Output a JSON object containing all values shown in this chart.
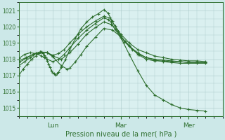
{
  "xlabel": "Pression niveau de la mer( hPa )",
  "bg_color": "#cce8e8",
  "plot_bg_color": "#daf0f0",
  "grid_color": "#aacaca",
  "line_color": "#2d6e2d",
  "ylim": [
    1014.5,
    1021.5
  ],
  "yticks": [
    1015,
    1016,
    1017,
    1018,
    1019,
    1020,
    1021
  ],
  "day_labels": [
    "Lun",
    "Mar",
    "Mer"
  ],
  "day_positions": [
    24,
    72,
    120
  ],
  "xlim": [
    0,
    144
  ],
  "series": [
    [
      0,
      1017.0,
      3,
      1017.4,
      6,
      1017.7,
      9,
      1018.0,
      12,
      1018.2,
      14,
      1018.35,
      16,
      1018.4,
      17,
      1018.35,
      18,
      1018.25,
      19,
      1018.1,
      20,
      1017.9,
      21,
      1017.7,
      22,
      1017.5,
      23,
      1017.3,
      24,
      1017.15,
      25,
      1017.1,
      26,
      1017.05,
      27,
      1017.1,
      28,
      1017.2,
      30,
      1017.5,
      33,
      1018.0,
      36,
      1018.6,
      40,
      1019.3,
      44,
      1019.9,
      48,
      1020.3,
      52,
      1020.6,
      56,
      1020.8,
      60,
      1021.05,
      63,
      1020.85,
      66,
      1020.35,
      70,
      1019.7,
      74,
      1019.0,
      78,
      1018.3,
      84,
      1017.3,
      90,
      1016.4,
      96,
      1015.8,
      102,
      1015.5,
      108,
      1015.2,
      114,
      1015.0,
      120,
      1014.9,
      126,
      1014.85,
      132,
      1014.8
    ],
    [
      0,
      1018.05,
      4,
      1018.3,
      8,
      1018.4,
      12,
      1018.35,
      16,
      1018.2,
      18,
      1018.1,
      20,
      1018.0,
      24,
      1017.85,
      28,
      1018.0,
      32,
      1018.3,
      36,
      1018.7,
      42,
      1019.3,
      48,
      1019.8,
      54,
      1020.2,
      60,
      1020.55,
      63,
      1020.45,
      65,
      1020.3,
      68,
      1019.85,
      72,
      1019.3,
      78,
      1018.8,
      84,
      1018.4,
      90,
      1018.1,
      96,
      1017.95,
      102,
      1017.85,
      108,
      1017.8,
      114,
      1017.75,
      120,
      1017.75,
      126,
      1017.75,
      132,
      1017.75
    ],
    [
      0,
      1017.6,
      4,
      1017.85,
      8,
      1018.1,
      12,
      1018.35,
      16,
      1018.45,
      20,
      1018.4,
      24,
      1018.25,
      28,
      1018.35,
      32,
      1018.6,
      36,
      1019.0,
      42,
      1019.55,
      48,
      1020.0,
      54,
      1020.35,
      60,
      1020.65,
      64,
      1020.55,
      68,
      1020.05,
      72,
      1019.55,
      78,
      1019.0,
      84,
      1018.6,
      90,
      1018.4,
      96,
      1018.2,
      102,
      1018.1,
      108,
      1018.0,
      114,
      1017.95,
      120,
      1017.9,
      126,
      1017.9,
      132,
      1017.85
    ],
    [
      0,
      1017.8,
      5,
      1018.05,
      10,
      1018.3,
      15,
      1018.45,
      20,
      1018.4,
      24,
      1018.2,
      30,
      1018.0,
      36,
      1018.4,
      42,
      1018.95,
      48,
      1019.55,
      54,
      1019.95,
      60,
      1020.3,
      65,
      1020.15,
      70,
      1019.7,
      75,
      1019.1,
      80,
      1018.6,
      85,
      1018.3,
      90,
      1018.1,
      96,
      1018.0,
      102,
      1017.95,
      108,
      1017.9,
      114,
      1017.85,
      120,
      1017.8,
      126,
      1017.8,
      132,
      1017.8
    ],
    [
      0,
      1017.9,
      5,
      1018.1,
      10,
      1018.3,
      15,
      1018.45,
      20,
      1018.4,
      24,
      1018.15,
      30,
      1017.6,
      34,
      1017.4,
      36,
      1017.45,
      40,
      1017.85,
      44,
      1018.3,
      48,
      1018.8,
      54,
      1019.35,
      60,
      1019.9,
      66,
      1019.8,
      72,
      1019.4,
      78,
      1018.85,
      84,
      1018.3,
      90,
      1018.0,
      96,
      1017.9,
      102,
      1017.9,
      108,
      1017.85,
      114,
      1017.85,
      120,
      1017.8,
      126,
      1017.8,
      132,
      1017.8
    ]
  ]
}
